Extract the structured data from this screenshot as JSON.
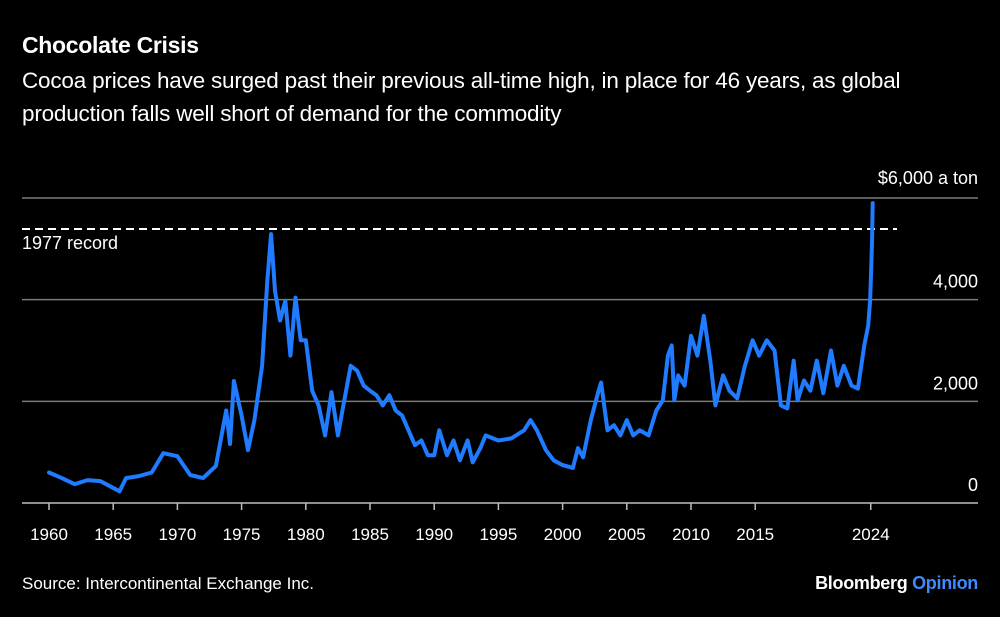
{
  "chart_data": {
    "type": "line",
    "title": "Chocolate Crisis",
    "subtitle": "Cocoa prices have surged past their previous all-time high, in place for 46 years, as global production falls well short of demand for the commodity",
    "unit_label": "$6,000 a ton",
    "ylim": [
      0,
      6000
    ],
    "xlim": [
      1958.5,
      2032
    ],
    "yticks": [
      0,
      2000,
      4000,
      6000
    ],
    "ytick_labels": [
      "0",
      "2,000",
      "4,000",
      "$6,000 a ton"
    ],
    "xticks": [
      1960,
      1965,
      1970,
      1975,
      1980,
      1985,
      1990,
      1995,
      2000,
      2005,
      2010,
      2015,
      2024
    ],
    "xtick_labels": [
      "1960",
      "1965",
      "1970",
      "1975",
      "1980",
      "1985",
      "1990",
      "1995",
      "2000",
      "2005",
      "2010",
      "2015",
      "2024"
    ],
    "grid": true,
    "reference_line": {
      "label": "1977 record",
      "value": 5390,
      "style": "dashed",
      "color": "#ffffff"
    },
    "series": [
      {
        "color": "#1f7bff",
        "x": [
          1960,
          1961,
          1962,
          1963,
          1964,
          1965.5,
          1966,
          1967,
          1968,
          1968.9,
          1970,
          1971,
          1972,
          1973,
          1973.8,
          1974.1,
          1974.4,
          1975,
          1975.5,
          1976,
          1976.6,
          1977.0,
          1977.3,
          1977.6,
          1978,
          1978.4,
          1978.8,
          1979.2,
          1979.6,
          1980,
          1980.5,
          1981,
          1981.5,
          1982,
          1982.5,
          1983,
          1983.5,
          1984,
          1984.5,
          1985,
          1985.5,
          1986,
          1986.5,
          1987,
          1987.5,
          1988,
          1988.5,
          1989,
          1989.5,
          1990,
          1990.4,
          1991,
          1991.5,
          1992,
          1992.6,
          1993,
          1993.6,
          1994,
          1995,
          1996,
          1997,
          1997.5,
          1998,
          1998.7,
          1999.3,
          2000,
          2000.8,
          2001.2,
          2001.6,
          2002.2,
          2002.8,
          2003.0,
          2003.5,
          2004,
          2004.5,
          2005,
          2005.5,
          2006,
          2006.7,
          2007.3,
          2007.8,
          2008.2,
          2008.5,
          2008.7,
          2009.0,
          2009.5,
          2010.0,
          2010.5,
          2011.0,
          2011.5,
          2011.9,
          2012.5,
          2013,
          2013.6,
          2014.2,
          2014.8,
          2015.3,
          2015.9,
          2016.5,
          2017.0,
          2017.5,
          2018.0,
          2018.3,
          2018.8,
          2019.3,
          2019.8,
          2020.3,
          2020.9,
          2021.4,
          2021.9,
          2022.5,
          2023.0,
          2023.5,
          2023.8,
          2023.95,
          2024.0,
          2024.1,
          2024.15
        ],
        "y": [
          600,
          490,
          370,
          450,
          430,
          230,
          490,
          530,
          600,
          980,
          920,
          550,
          490,
          730,
          1820,
          1160,
          2400,
          1720,
          1040,
          1630,
          2700,
          4370,
          5290,
          4170,
          3590,
          3980,
          2900,
          4040,
          3200,
          3200,
          2210,
          1920,
          1330,
          2180,
          1330,
          2020,
          2700,
          2600,
          2310,
          2210,
          2120,
          1920,
          2120,
          1820,
          1720,
          1430,
          1140,
          1230,
          940,
          940,
          1430,
          940,
          1230,
          840,
          1230,
          800,
          1080,
          1330,
          1230,
          1270,
          1430,
          1630,
          1430,
          1040,
          840,
          745,
          690,
          1080,
          900,
          1630,
          2210,
          2370,
          1430,
          1530,
          1330,
          1630,
          1330,
          1430,
          1330,
          1820,
          2020,
          2900,
          3100,
          2020,
          2510,
          2310,
          3290,
          2900,
          3680,
          2800,
          1920,
          2510,
          2210,
          2060,
          2700,
          3200,
          2900,
          3200,
          3000,
          1920,
          1860,
          2800,
          2020,
          2410,
          2210,
          2800,
          2160,
          3000,
          2310,
          2700,
          2310,
          2250,
          3100,
          3490,
          3980,
          4370,
          5120,
          5900
        ]
      }
    ]
  },
  "source": "Source: Intercontinental Exchange Inc.",
  "logo": {
    "brand": "Bloomberg",
    "section": "Opinion"
  }
}
